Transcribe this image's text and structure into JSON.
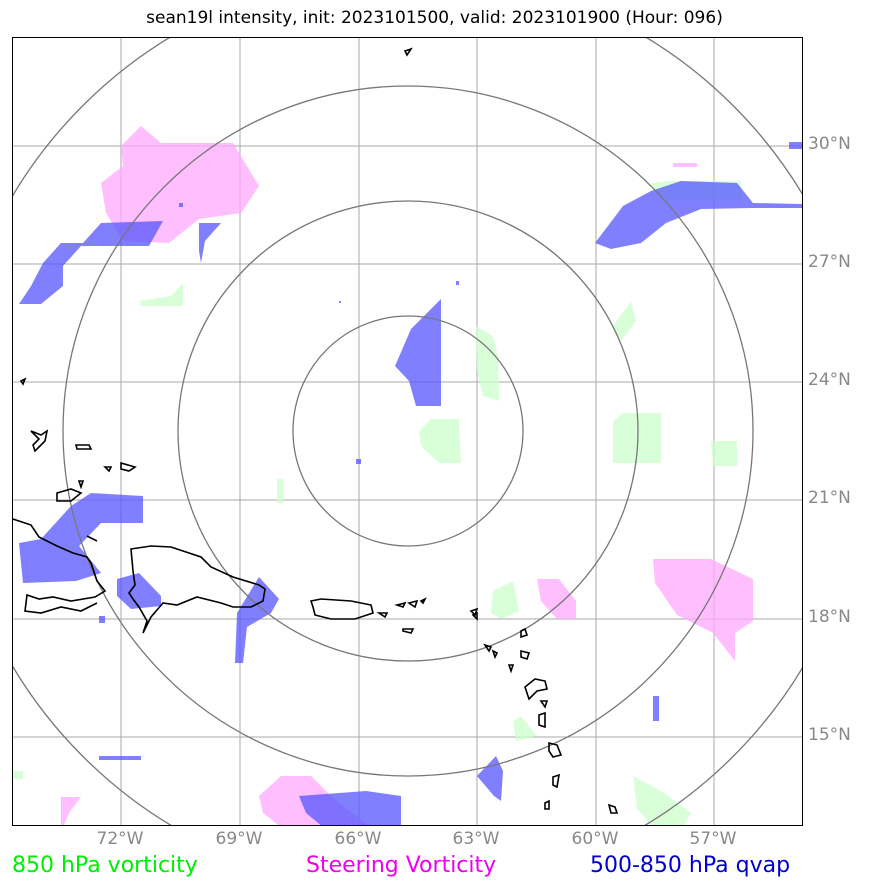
{
  "title": "sean19l intensity, init: 2023101500, valid: 2023101900 (Hour: 096)",
  "lat_labels": [
    "30°N",
    "27°N",
    "24°N",
    "21°N",
    "18°N",
    "15°N"
  ],
  "lon_labels": [
    "72°W",
    "69°W",
    "66°W",
    "63°W",
    "60°W",
    "57°W"
  ],
  "legend": {
    "vort850": "850 hPa vorticity",
    "steering": "Steering Vorticity",
    "qvap": "500-850 hPa qvap"
  },
  "colors": {
    "vort850": "#ccffcc",
    "steering": "#ffaaff",
    "qvap": "#5555ff",
    "grid": "#aaaaaa",
    "rings": "#777777",
    "coast": "#000000"
  }
}
